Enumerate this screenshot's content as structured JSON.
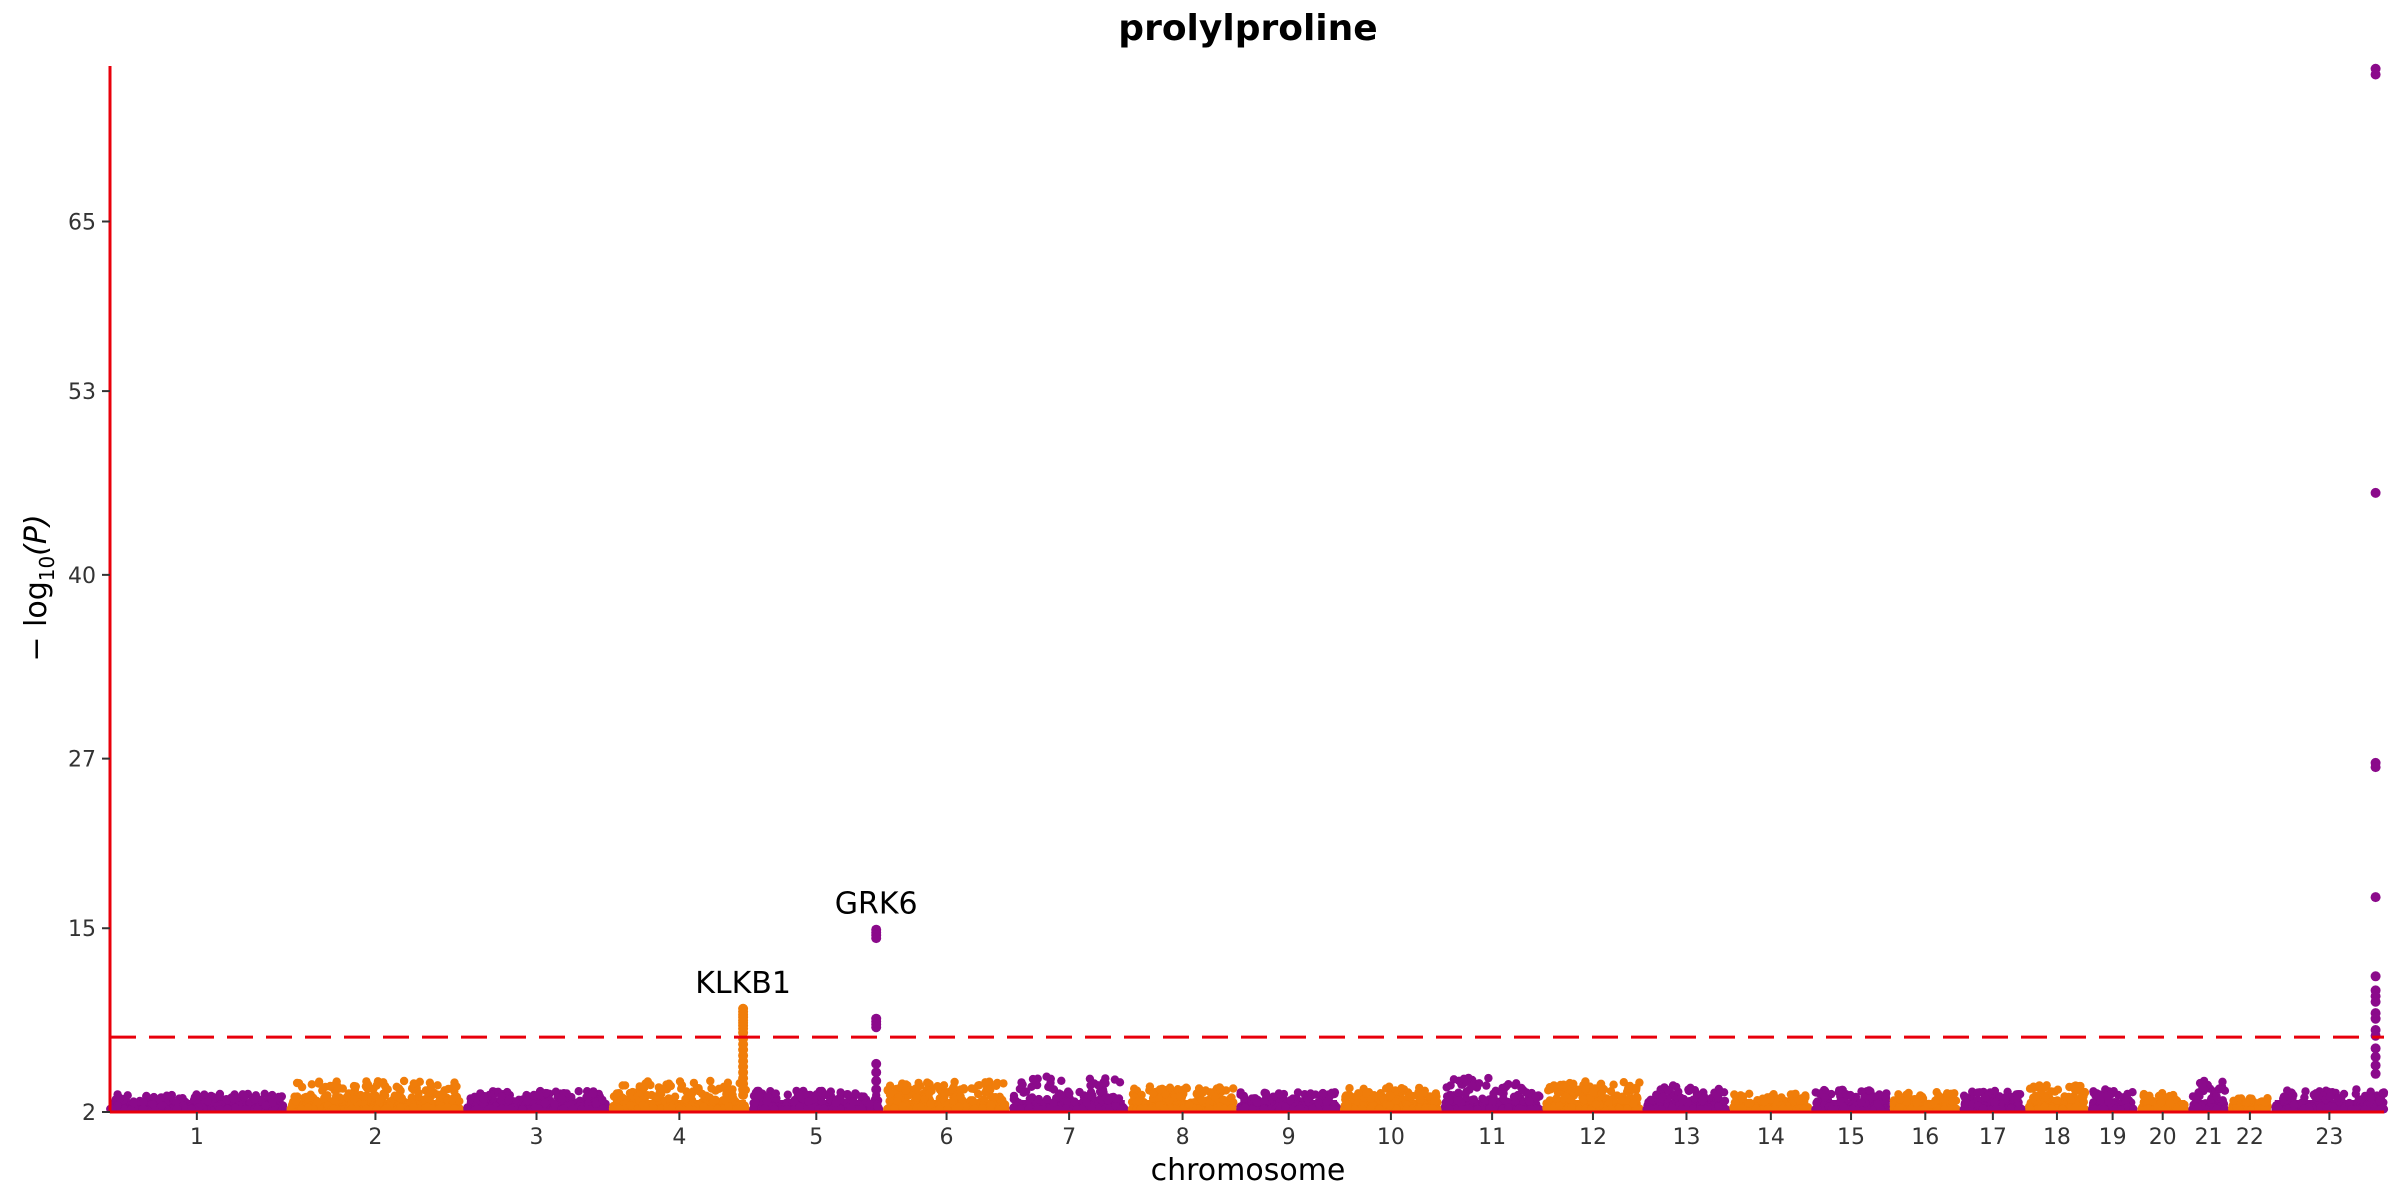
{
  "chart_data": {
    "type": "scatter",
    "title": "prolylproline",
    "xlabel": "chromosome",
    "ylabel_text": "− log",
    "ylabel_subscript": "10",
    "ylabel_suffix": "(P)",
    "ylim": [
      2,
      76
    ],
    "yticks": [
      2,
      15,
      27,
      40,
      53,
      65
    ],
    "threshold": 7.3,
    "colors": {
      "odd": "#8b0a8b",
      "even": "#f07d0a",
      "axis": "#e8000b",
      "threshold": "#e8000b"
    },
    "chromosomes": [
      {
        "label": "1",
        "length": 248,
        "peak": 3.3
      },
      {
        "label": "2",
        "length": 242,
        "peak": 4.2
      },
      {
        "label": "3",
        "length": 198,
        "peak": 3.5
      },
      {
        "label": "4",
        "length": 190,
        "peak": 4.2
      },
      {
        "label": "5",
        "length": 181,
        "peak": 3.5
      },
      {
        "label": "6",
        "length": 171,
        "peak": 4.2
      },
      {
        "label": "7",
        "length": 159,
        "peak": 4.5
      },
      {
        "label": "8",
        "length": 145,
        "peak": 3.8
      },
      {
        "label": "9",
        "length": 138,
        "peak": 3.4
      },
      {
        "label": "10",
        "length": 134,
        "peak": 3.8
      },
      {
        "label": "11",
        "length": 135,
        "peak": 4.5
      },
      {
        "label": "12",
        "length": 133,
        "peak": 4.2
      },
      {
        "label": "13",
        "length": 114,
        "peak": 4.0
      },
      {
        "label": "14",
        "length": 107,
        "peak": 3.3
      },
      {
        "label": "15",
        "length": 102,
        "peak": 3.6
      },
      {
        "label": "16",
        "length": 90,
        "peak": 3.4
      },
      {
        "label": "17",
        "length": 83,
        "peak": 3.5
      },
      {
        "label": "18",
        "length": 80,
        "peak": 3.9
      },
      {
        "label": "19",
        "length": 59,
        "peak": 3.6
      },
      {
        "label": "20",
        "length": 64,
        "peak": 3.4
      },
      {
        "label": "21",
        "length": 47,
        "peak": 4.2
      },
      {
        "label": "22",
        "length": 51,
        "peak": 3.0
      },
      {
        "label": "23",
        "length": 156,
        "peak": 3.6
      }
    ],
    "highlight_loci": [
      {
        "chrom": "4",
        "pos": 186,
        "values": [
          9.3,
          9.1,
          8.9,
          8.7,
          8.5,
          8.3,
          8.1,
          7.9,
          7.6,
          7.2,
          6.8,
          6.4,
          6.0,
          5.6,
          5.2,
          4.8,
          4.4,
          4.0,
          3.6,
          3.2
        ],
        "label": "KLKB1"
      },
      {
        "chrom": "5",
        "pos": 176,
        "values": [
          14.9,
          14.7,
          14.5,
          14.3,
          8.6,
          8.4,
          8.2,
          8.0,
          5.4,
          4.8,
          4.2,
          3.6
        ],
        "label": "GRK6"
      },
      {
        "chrom": "23",
        "pos": 144,
        "values": [
          75.8,
          75.4,
          45.8,
          26.7,
          26.4,
          17.2,
          11.6,
          10.6,
          10.2,
          9.8,
          9.0,
          8.6,
          7.8,
          7.4,
          6.5,
          5.9,
          5.3,
          4.7
        ],
        "label": ""
      }
    ]
  }
}
